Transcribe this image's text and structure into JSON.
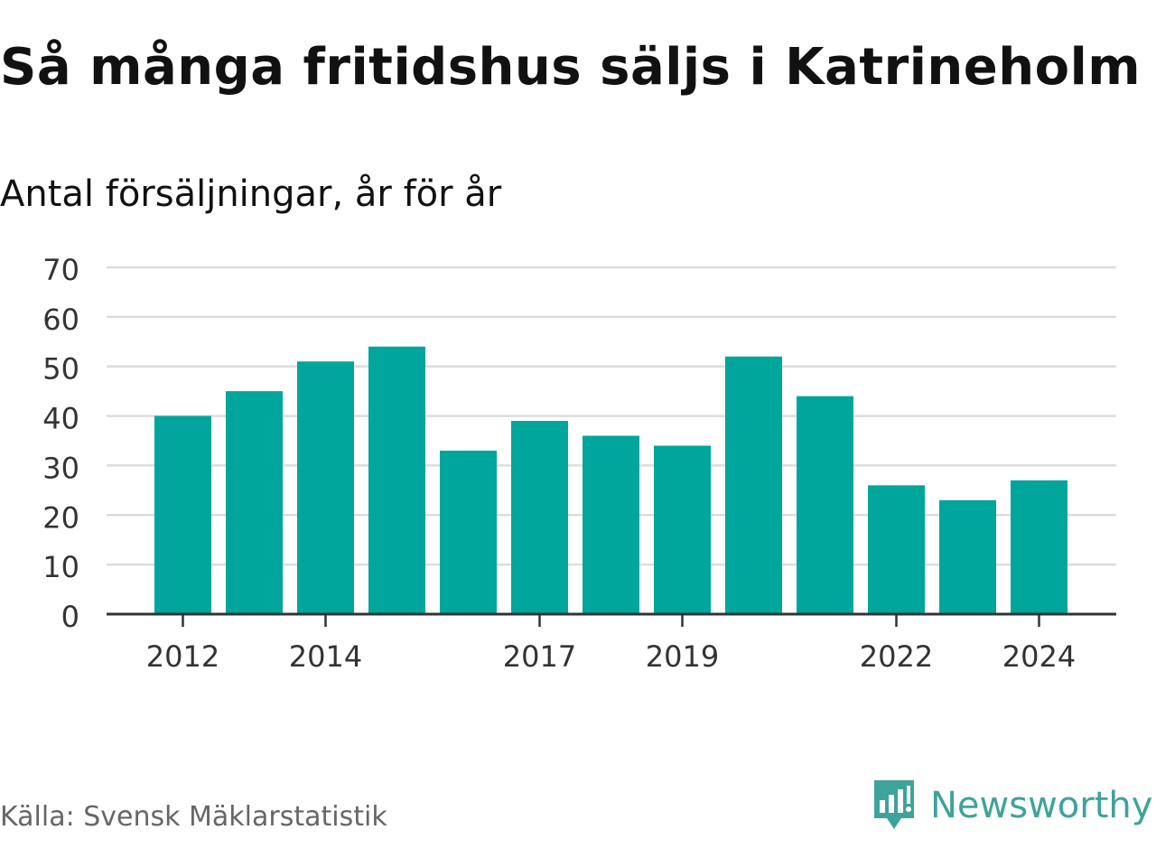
{
  "title": "Så många fritidshus säljs i Katrineholm",
  "subtitle": "Antal försäljningar, år för år",
  "source": "Källa: Svensk Mäklarstatistik",
  "brand": "Newsworthy",
  "colors": {
    "bar": "#00a59b",
    "grid": "#dddddd",
    "axis": "#333333",
    "brand": "#3ea39a"
  },
  "chart_data": {
    "type": "bar",
    "categories": [
      "2012",
      "2013",
      "2014",
      "2015",
      "2016",
      "2017",
      "2018",
      "2019",
      "2020",
      "2021",
      "2022",
      "2023",
      "2024"
    ],
    "values": [
      40,
      45,
      51,
      54,
      33,
      39,
      36,
      34,
      52,
      44,
      26,
      23,
      27
    ],
    "xticks": [
      "2012",
      "2014",
      "2017",
      "2019",
      "2022",
      "2024"
    ],
    "yticks": [
      0,
      10,
      20,
      30,
      40,
      50,
      60,
      70
    ],
    "ylim": [
      0,
      70
    ],
    "grid": true,
    "legend": "none"
  }
}
